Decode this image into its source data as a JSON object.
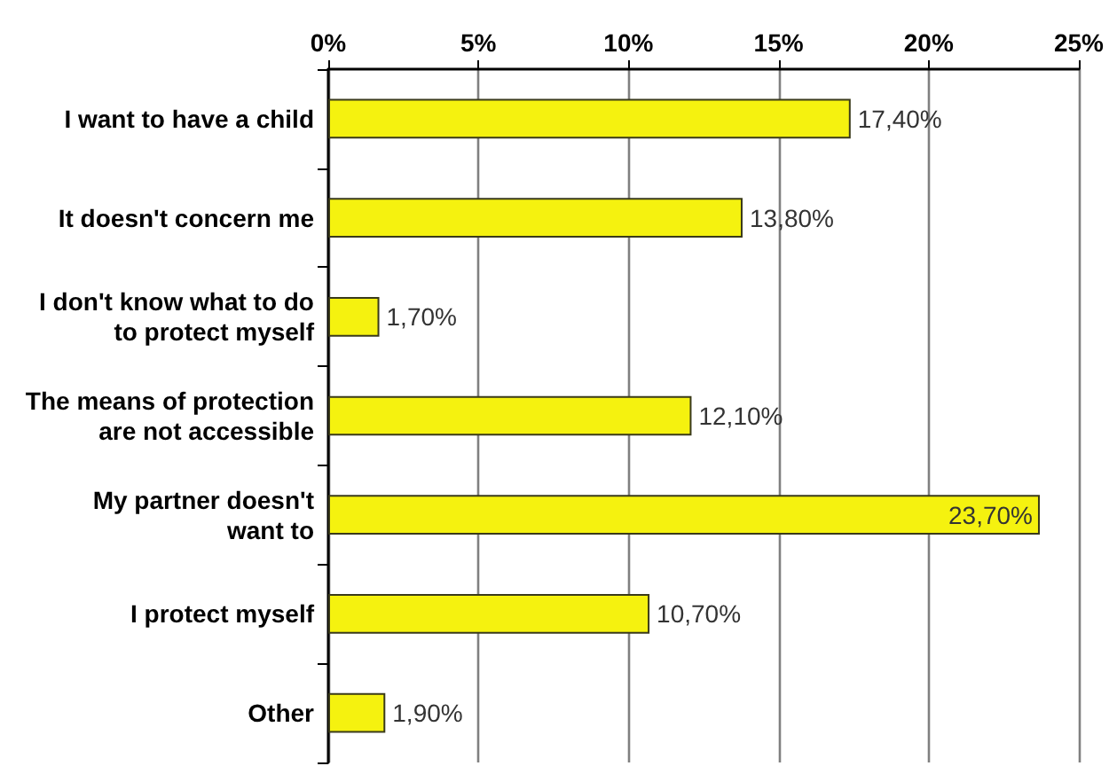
{
  "chart_data": {
    "type": "bar",
    "orientation": "horizontal",
    "categories": [
      "I want to have a child",
      "It doesn't concern me",
      "I don't know what to do to protect myself",
      "The means of protection are not accessible",
      "My partner doesn't want to",
      "I protect myself",
      "Other"
    ],
    "values": [
      17.4,
      13.8,
      1.7,
      12.1,
      23.7,
      10.7,
      1.9
    ],
    "value_labels": [
      "17,40%",
      "13,80%",
      "1,70%",
      "12,10%",
      "23,70%",
      "10,70%",
      "1,90%"
    ],
    "color": "#f5f20f",
    "xlim": [
      0,
      25
    ],
    "xticks": [
      {
        "value": 0,
        "label": "0%"
      },
      {
        "value": 5,
        "label": "5%"
      },
      {
        "value": 10,
        "label": "10%"
      },
      {
        "value": 15,
        "label": "15%"
      },
      {
        "value": 20,
        "label": "20%"
      },
      {
        "value": 25,
        "label": "25%"
      }
    ],
    "grid": "x"
  }
}
